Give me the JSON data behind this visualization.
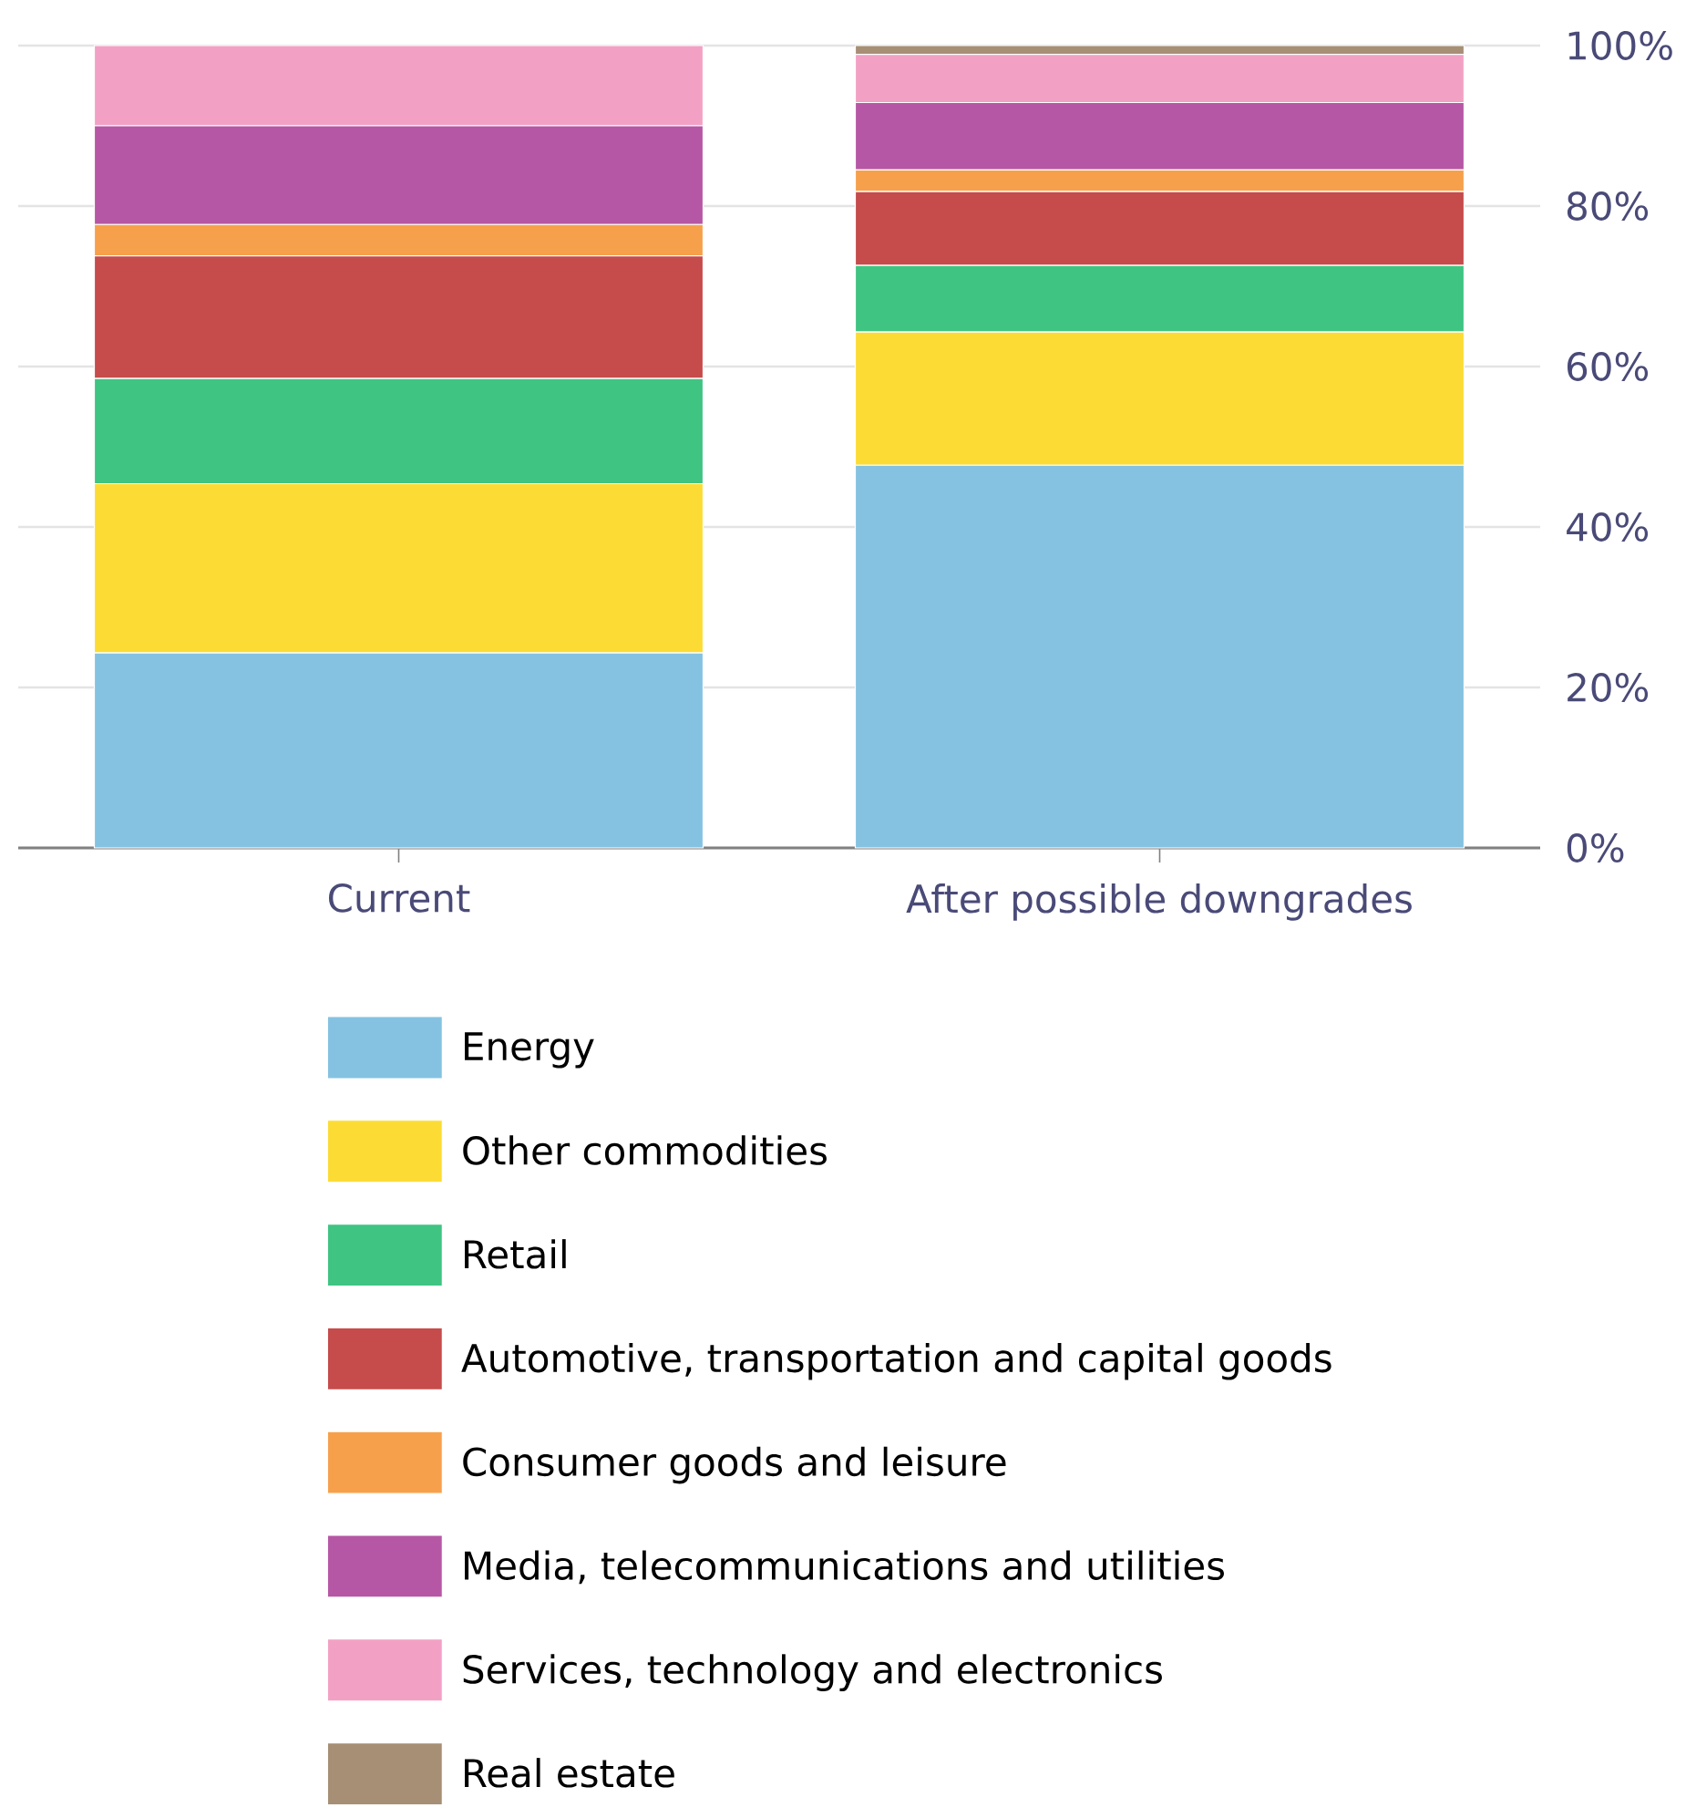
{
  "chart_data": {
    "type": "bar",
    "stacked": true,
    "categories": [
      "Current",
      "After possible downgrades"
    ],
    "series": [
      {
        "name": "Energy",
        "color": "#85c2e1",
        "values": [
          24.3,
          47.7
        ]
      },
      {
        "name": "Other commodities",
        "color": "#fcdc34",
        "values": [
          21.1,
          16.6
        ]
      },
      {
        "name": "Retail",
        "color": "#3fc482",
        "values": [
          13.1,
          8.3
        ]
      },
      {
        "name": "Automotive, transportation and capital goods",
        "color": "#c64b4b",
        "values": [
          15.3,
          9.2
        ]
      },
      {
        "name": "Consumer goods and leisure",
        "color": "#f7a04b",
        "values": [
          3.9,
          2.7
        ]
      },
      {
        "name": "Media, telecommunications and utilities",
        "color": "#b657a5",
        "values": [
          12.3,
          8.4
        ]
      },
      {
        "name": "Services, technology and electronics",
        "color": "#f2a1c5",
        "values": [
          10.0,
          6.0
        ]
      },
      {
        "name": "Real estate",
        "color": "#a68f75",
        "values": [
          0,
          1.1
        ]
      }
    ],
    "ylim": [
      0,
      100
    ],
    "yticks": [
      {
        "value": 0,
        "label": "0%"
      },
      {
        "value": 20,
        "label": "20%"
      },
      {
        "value": 40,
        "label": "40%"
      },
      {
        "value": 60,
        "label": "60%"
      },
      {
        "value": 80,
        "label": "80%"
      },
      {
        "value": 100,
        "label": "100%"
      }
    ],
    "grid": "y",
    "legend": "bottom"
  }
}
